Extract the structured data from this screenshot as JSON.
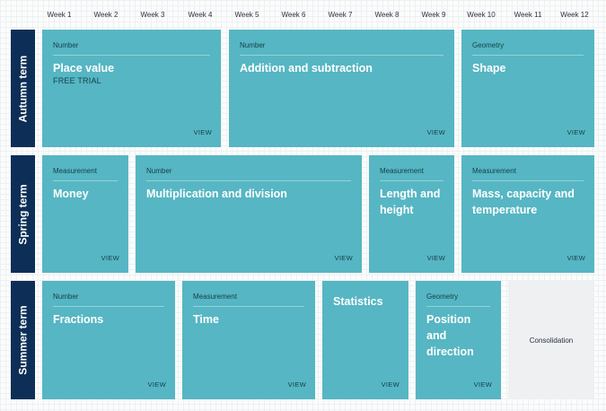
{
  "weeks": [
    "Week 1",
    "Week 2",
    "Week 3",
    "Week 4",
    "Week 5",
    "Week 6",
    "Week 7",
    "Week 8",
    "Week 9",
    "Week 10",
    "Week 11",
    "Week 12"
  ],
  "terms": {
    "autumn": "Autumn term",
    "spring": "Spring term",
    "summer": "Summer term"
  },
  "view_label": "VIEW",
  "autumn_blocks": [
    {
      "category": "Number",
      "title": "Place value",
      "badge": "FREE TRIAL"
    },
    {
      "category": "Number",
      "title": "Addition and subtraction"
    },
    {
      "category": "Geometry",
      "title": "Shape"
    }
  ],
  "spring_blocks": [
    {
      "category": "Measurement",
      "title": "Money"
    },
    {
      "category": "Number",
      "title": "Multiplication and division"
    },
    {
      "category": "Measurement",
      "title": "Length and height"
    },
    {
      "category": "Measurement",
      "title": "Mass, capacity and temperature"
    }
  ],
  "summer_blocks": [
    {
      "category": "Number",
      "title": "Fractions"
    },
    {
      "category": "Measurement",
      "title": "Time"
    },
    {
      "title": "Statistics"
    },
    {
      "category": "Geometry",
      "title": "Position and direction"
    },
    {
      "title": "Consolidation"
    }
  ],
  "colors": {
    "card": "#56b6c3",
    "term_bar": "#0d2f57",
    "consolidation_bg": "#eef0f2"
  }
}
